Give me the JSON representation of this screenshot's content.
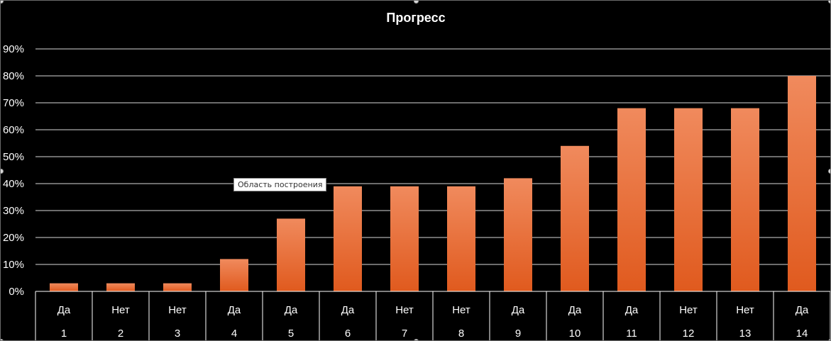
{
  "chart_data": {
    "type": "bar",
    "title": "Прогресс",
    "categories": [
      "1",
      "2",
      "3",
      "4",
      "5",
      "6",
      "7",
      "8",
      "9",
      "10",
      "11",
      "12",
      "13",
      "14"
    ],
    "category_labels": [
      "Да",
      "Нет",
      "Нет",
      "Да",
      "Да",
      "Да",
      "Нет",
      "Нет",
      "Да",
      "Да",
      "Да",
      "Нет",
      "Нет",
      "Да"
    ],
    "values": [
      3,
      3,
      3,
      12,
      27,
      39,
      39,
      39,
      42,
      54,
      68,
      68,
      68,
      80
    ],
    "y_ticks": [
      "0%",
      "10%",
      "20%",
      "30%",
      "40%",
      "50%",
      "60%",
      "70%",
      "80%",
      "90%"
    ],
    "ylim": [
      0,
      90
    ],
    "grid": true,
    "legend": "none",
    "bar_color_top": "#f08a5d",
    "bar_color_bottom": "#e05a1e",
    "grid_color": "#ffffff",
    "background_color": "#000000"
  },
  "tooltip": {
    "text": "Область построения"
  }
}
